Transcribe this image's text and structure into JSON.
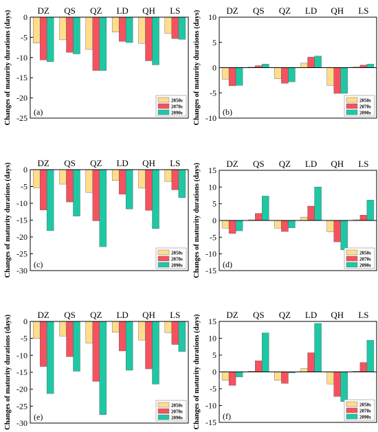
{
  "colors": {
    "2050s": "#FFDD8C",
    "2070s": "#F5525F",
    "2090s": "#1EC8A5"
  },
  "chart_data": [
    {
      "type": "bar",
      "panel_label": "(a)",
      "categories": [
        "DZ",
        "QS",
        "QZ",
        "LD",
        "QH",
        "LS"
      ],
      "ylabel": "Changes of maturity durations (days)",
      "ylim": [
        -25,
        0
      ],
      "yticks": [
        0,
        -5,
        -10,
        -15,
        -20,
        -25
      ],
      "legend": "bottom-right",
      "series": [
        {
          "name": "2050s",
          "values": [
            -6.4,
            -5.6,
            -8.0,
            -3.7,
            -6.5,
            -4.0
          ]
        },
        {
          "name": "2070s",
          "values": [
            -10.6,
            -8.7,
            -13.2,
            -6.0,
            -10.8,
            -5.3
          ]
        },
        {
          "name": "2090s",
          "values": [
            -11.0,
            -9.1,
            -13.2,
            -6.3,
            -11.8,
            -5.5
          ]
        }
      ]
    },
    {
      "type": "bar",
      "panel_label": "(b)",
      "categories": [
        "DZ",
        "QS",
        "QZ",
        "LD",
        "QH",
        "LS"
      ],
      "ylabel": "Changes of maturity durations (days)",
      "ylim": [
        -10,
        10
      ],
      "yticks": [
        10,
        5,
        0,
        -5,
        -10
      ],
      "legend": "bottom-right",
      "series": [
        {
          "name": "2050s",
          "values": [
            -2.3,
            0.1,
            -2.2,
            0.9,
            -3.5,
            0.2
          ]
        },
        {
          "name": "2070s",
          "values": [
            -3.6,
            0.4,
            -3.1,
            2.1,
            -5.1,
            0.5
          ]
        },
        {
          "name": "2090s",
          "values": [
            -3.5,
            0.7,
            -2.8,
            2.3,
            -5.1,
            0.7
          ]
        }
      ]
    },
    {
      "type": "bar",
      "panel_label": "(c)",
      "categories": [
        "DZ",
        "QS",
        "QZ",
        "LD",
        "QH",
        "LS"
      ],
      "ylabel": "Changes of maturity durations (days)",
      "ylim": [
        -30,
        0
      ],
      "yticks": [
        0,
        -5,
        -10,
        -15,
        -20,
        -25,
        -30
      ],
      "legend": "bottom-right",
      "series": [
        {
          "name": "2050s",
          "values": [
            -5.4,
            -4.3,
            -6.8,
            -3.2,
            -5.5,
            -3.5
          ]
        },
        {
          "name": "2070s",
          "values": [
            -12.0,
            -9.6,
            -15.2,
            -7.3,
            -12.1,
            -6.0
          ]
        },
        {
          "name": "2090s",
          "values": [
            -18.1,
            -13.8,
            -22.9,
            -11.7,
            -17.5,
            -8.3
          ]
        }
      ]
    },
    {
      "type": "bar",
      "panel_label": "(d)",
      "categories": [
        "DZ",
        "QS",
        "QZ",
        "LD",
        "QH",
        "LS"
      ],
      "ylabel": "Changes of maturity durations (days)",
      "ylim": [
        -15,
        15
      ],
      "yticks": [
        15,
        10,
        5,
        0,
        -5,
        -10,
        -15
      ],
      "legend": "bottom-right",
      "series": [
        {
          "name": "2050s",
          "values": [
            -2.3,
            0.2,
            -2.3,
            1.0,
            -3.4,
            0.2
          ]
        },
        {
          "name": "2070s",
          "values": [
            -3.9,
            2.1,
            -3.3,
            4.3,
            -6.4,
            1.6
          ]
        },
        {
          "name": "2090s",
          "values": [
            -3.1,
            7.3,
            -2.2,
            10.0,
            -8.8,
            6.1
          ]
        }
      ]
    },
    {
      "type": "bar",
      "panel_label": "(e)",
      "categories": [
        "DZ",
        "QS",
        "QZ",
        "LD",
        "QH",
        "LS"
      ],
      "ylabel": "Changes of maturity durations (days)",
      "ylim": [
        -30,
        0
      ],
      "yticks": [
        0,
        -5,
        -10,
        -15,
        -20,
        -25,
        -30
      ],
      "legend": "bottom-right",
      "series": [
        {
          "name": "2050s",
          "values": [
            -5.0,
            -4.3,
            -6.4,
            -3.2,
            -5.5,
            -3.3
          ]
        },
        {
          "name": "2070s",
          "values": [
            -13.3,
            -10.4,
            -17.7,
            -8.7,
            -14.0,
            -6.8
          ]
        },
        {
          "name": "2090s",
          "values": [
            -21.3,
            -14.7,
            -27.5,
            -14.4,
            -18.5,
            -8.9
          ]
        }
      ]
    },
    {
      "type": "bar",
      "panel_label": "(f)",
      "categories": [
        "DZ",
        "QS",
        "QZ",
        "LD",
        "QH",
        "LS"
      ],
      "ylabel": "Changes of maturity durations (days)",
      "ylim": [
        -15,
        15
      ],
      "yticks": [
        15,
        10,
        5,
        0,
        -5,
        -10,
        -15
      ],
      "legend": "bottom-right",
      "series": [
        {
          "name": "2050s",
          "values": [
            -2.5,
            0.2,
            -2.5,
            1.0,
            -3.6,
            0.2
          ]
        },
        {
          "name": "2070s",
          "values": [
            -4.0,
            3.3,
            -3.4,
            5.7,
            -7.3,
            2.8
          ]
        },
        {
          "name": "2090s",
          "values": [
            -1.5,
            11.6,
            -0.3,
            14.4,
            -8.8,
            9.4
          ]
        }
      ]
    }
  ]
}
